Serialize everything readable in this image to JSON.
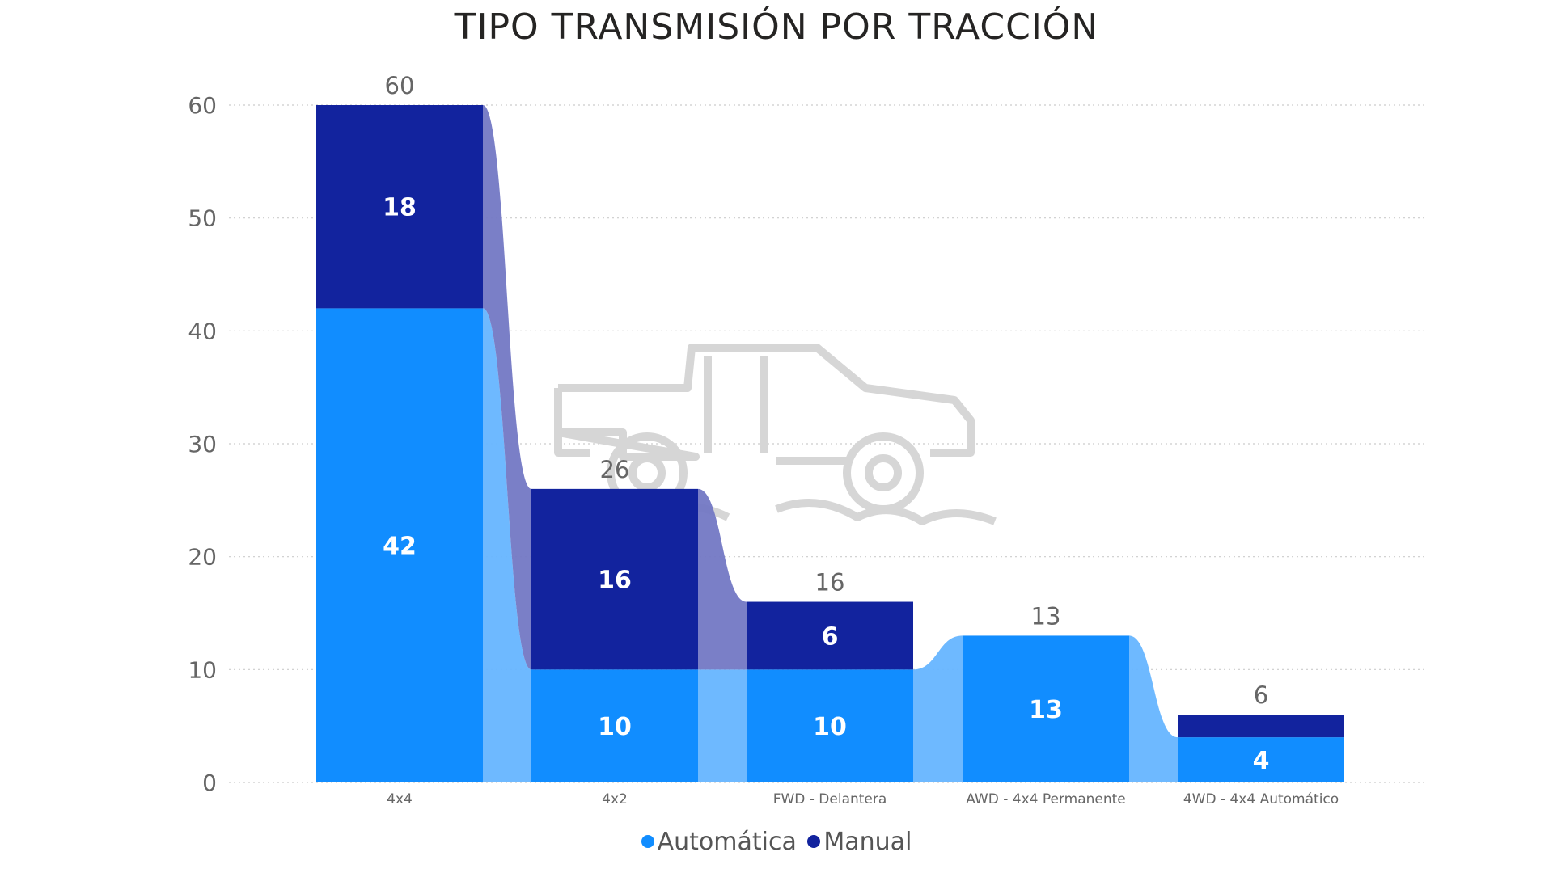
{
  "chart_data": {
    "type": "ribbon",
    "title": "TIPO TRANSMISIÓN POR TRACCIÓN",
    "categories": [
      "4x4",
      "4x2",
      "FWD - Delantera",
      "AWD - 4x4 Permanente",
      "4WD - 4x4 Automático"
    ],
    "series": [
      {
        "name": "Automática",
        "values": [
          42,
          10,
          10,
          13,
          4
        ],
        "color": "#118DFF",
        "ribbon_color": "#66B5FF"
      },
      {
        "name": "Manual",
        "values": [
          18,
          16,
          6,
          0,
          2
        ],
        "color": "#12239E",
        "ribbon_color": "#7378C4"
      }
    ],
    "segment_labels": [
      [
        "42",
        "18"
      ],
      [
        "10",
        "16"
      ],
      [
        "10",
        "6"
      ],
      [
        "13",
        ""
      ],
      [
        "4",
        ""
      ]
    ],
    "totals": [
      60,
      26,
      16,
      13,
      6
    ],
    "ylim": [
      0,
      60
    ],
    "yticks": [
      0,
      10,
      20,
      30,
      40,
      50,
      60
    ],
    "grid": true,
    "legend_position": "bottom-center",
    "xlabel": "",
    "ylabel": ""
  }
}
